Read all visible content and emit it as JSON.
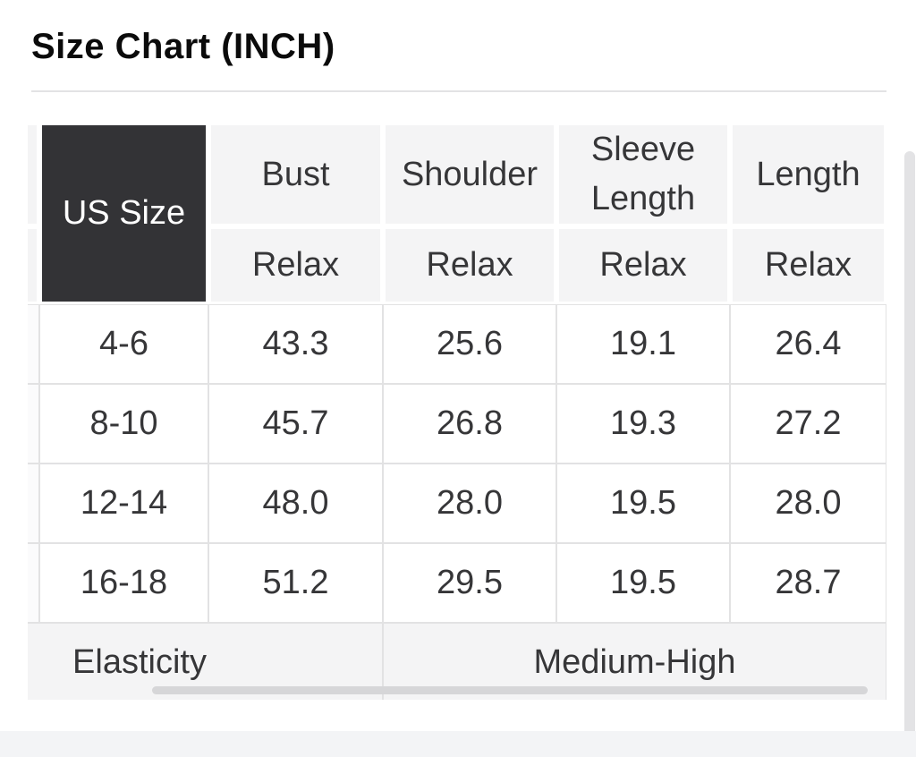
{
  "page": {
    "title": "Size Chart (INCH)"
  },
  "table": {
    "corner_label": "US Size",
    "columns": [
      {
        "label": "Bust",
        "fit": "Relax"
      },
      {
        "label": "Shoulder",
        "fit": "Relax"
      },
      {
        "label": "Sleeve Length",
        "fit": "Relax"
      },
      {
        "label": "Length",
        "fit": "Relax"
      }
    ],
    "rows": [
      {
        "us_size": "4-6",
        "values": [
          "43.3",
          "25.6",
          "19.1",
          "26.4"
        ]
      },
      {
        "us_size": "8-10",
        "values": [
          "45.7",
          "26.8",
          "19.3",
          "27.2"
        ]
      },
      {
        "us_size": "12-14",
        "values": [
          "48.0",
          "28.0",
          "19.5",
          "28.0"
        ]
      },
      {
        "us_size": "16-18",
        "values": [
          "51.2",
          "29.5",
          "19.5",
          "28.7"
        ]
      }
    ],
    "footer": {
      "label": "Elasticity",
      "value": "Medium-High"
    }
  },
  "colors": {
    "header_bg": "#f4f4f5",
    "dark_cell_bg": "#333336",
    "border": "#e2e2e3",
    "text": "#363638",
    "h_scrollbar": "#d6d6d8",
    "v_scrollbar": "#e3e3e5"
  }
}
